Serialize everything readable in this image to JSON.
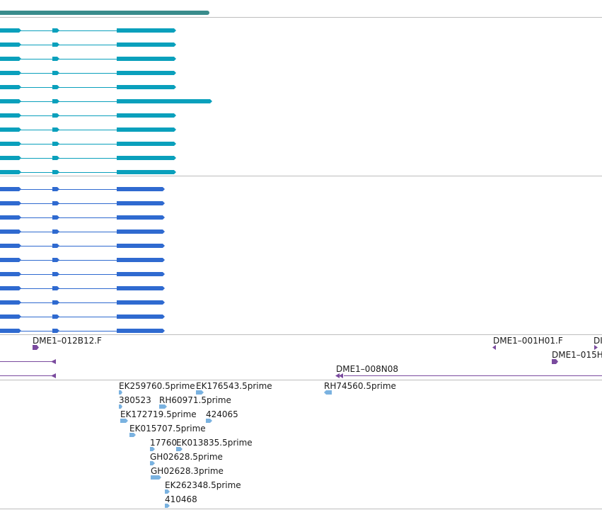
{
  "colors": {
    "summary": "#3a8c8c",
    "transcript_a": "#0aa0bc",
    "transcript_b": "#2f6ad0",
    "bac_end": "#7a4a9e",
    "est": "#7ab2e0",
    "divider": "#bdbdbd"
  },
  "summary_track": {
    "name": "gene-summary-bar"
  },
  "transcripts_a": [
    {
      "id": "a1",
      "long": false
    },
    {
      "id": "a2",
      "long": false
    },
    {
      "id": "a3",
      "long": false
    },
    {
      "id": "a4",
      "long": false
    },
    {
      "id": "a5",
      "long": false
    },
    {
      "id": "a6",
      "long": true
    },
    {
      "id": "a7",
      "long": false
    },
    {
      "id": "a8",
      "long": false
    },
    {
      "id": "a9",
      "long": false
    },
    {
      "id": "a10",
      "long": false
    },
    {
      "id": "a11",
      "long": false
    }
  ],
  "transcripts_b": [
    {
      "id": "b1"
    },
    {
      "id": "b2"
    },
    {
      "id": "b3"
    },
    {
      "id": "b4"
    },
    {
      "id": "b5"
    },
    {
      "id": "b6"
    },
    {
      "id": "b7"
    },
    {
      "id": "b8"
    },
    {
      "id": "b9"
    },
    {
      "id": "b10"
    },
    {
      "id": "b11"
    }
  ],
  "bac_ends": {
    "label_1": "DME1–012B12.F",
    "label_2": "DME1–001H01.F",
    "label_3": "DI",
    "label_4": "DME1–015H",
    "label_5": "DME1–008N08"
  },
  "ests": {
    "e1": "EK259760.5prime",
    "e2": "EK176543.5prime",
    "e3": "RH74560.5prime",
    "e4": "380523",
    "e5": "RH60971.5prime",
    "e6": "EK172719.5prime",
    "e7": "424065",
    "e8": "EK015707.5prime",
    "e9": "17760",
    "e10": "EK013835.5prime",
    "e11": "GH02628.5prime",
    "e12": "GH02628.3prime",
    "e13": "EK262348.5prime",
    "e14": "410468"
  }
}
